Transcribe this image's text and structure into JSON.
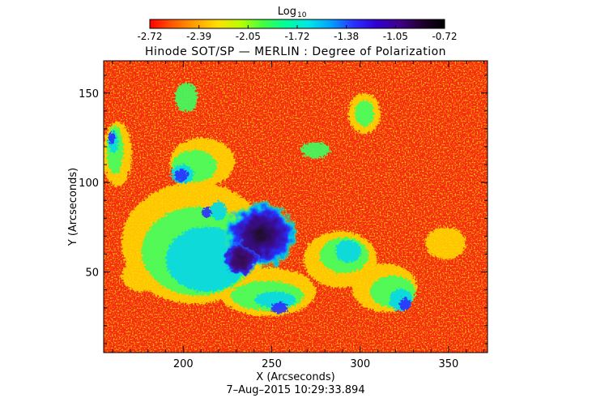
{
  "colorbar": {
    "label_main": "Log",
    "label_sub": "10",
    "ticks": [
      "-2.72",
      "-2.39",
      "-2.05",
      "-1.72",
      "-1.38",
      "-1.05",
      "-0.72"
    ],
    "gradient": [
      "#ff0000",
      "#ff5a00",
      "#ffa000",
      "#ffe000",
      "#b8ff00",
      "#40ff40",
      "#00ff9a",
      "#00e6e6",
      "#00a0ff",
      "#2a30ff",
      "#3000d0",
      "#40008a",
      "#200030",
      "#000000"
    ]
  },
  "plot": {
    "title": "Hinode SOT/SP — MERLIN : Degree of Polarization",
    "xlabel": "X (Arcseconds)",
    "ylabel": "Y (Arcseconds)",
    "x_ticks": [
      "200",
      "250",
      "300",
      "350"
    ],
    "y_ticks": [
      "50",
      "100",
      "150"
    ],
    "x_range": [
      155,
      372
    ],
    "y_range": [
      5,
      168
    ]
  },
  "timestamp": "7–Aug–2015 10:29:33.894"
}
